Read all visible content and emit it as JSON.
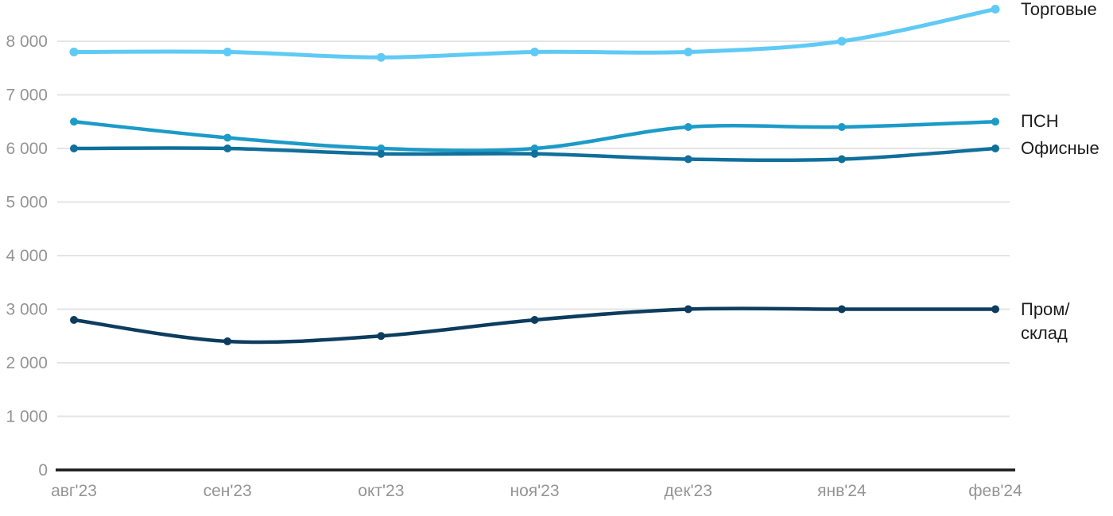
{
  "chart_data": {
    "type": "line",
    "title": "",
    "xlabel": "",
    "ylabel": "",
    "categories": [
      "авг'23",
      "сен'23",
      "окт'23",
      "ноя'23",
      "дек'23",
      "янв'24",
      "фев'24"
    ],
    "y_ticks": [
      0,
      1000,
      2000,
      3000,
      4000,
      5000,
      6000,
      7000,
      8000
    ],
    "y_tick_labels": [
      "0",
      "1 000",
      "2 000",
      "3 000",
      "4 000",
      "5 000",
      "6 000",
      "7 000",
      "8 000"
    ],
    "ylim": [
      0,
      8600
    ],
    "grid": "horizontal",
    "legend_position": "right-of-line-end",
    "series": [
      {
        "name": "Торговые",
        "color": "#5FCAF5",
        "values": [
          7800,
          7800,
          7700,
          7800,
          7800,
          8000,
          8600
        ]
      },
      {
        "name": "ПСН",
        "color": "#1C9BC8",
        "values": [
          6500,
          6200,
          6000,
          6000,
          6400,
          6400,
          6500
        ]
      },
      {
        "name": "Офисные",
        "color": "#106F9B",
        "values": [
          6000,
          6000,
          5900,
          5900,
          5800,
          5800,
          6000
        ]
      },
      {
        "name": "Пром/склад",
        "color": "#0D3D5E",
        "values": [
          2800,
          2400,
          2500,
          2800,
          3000,
          3000,
          3000
        ]
      }
    ]
  },
  "colors": {
    "grid": "#e4e4e4",
    "axis": "#1a1a1a",
    "tick_text": "#949494",
    "series_label_text": "#1d1d1d"
  }
}
